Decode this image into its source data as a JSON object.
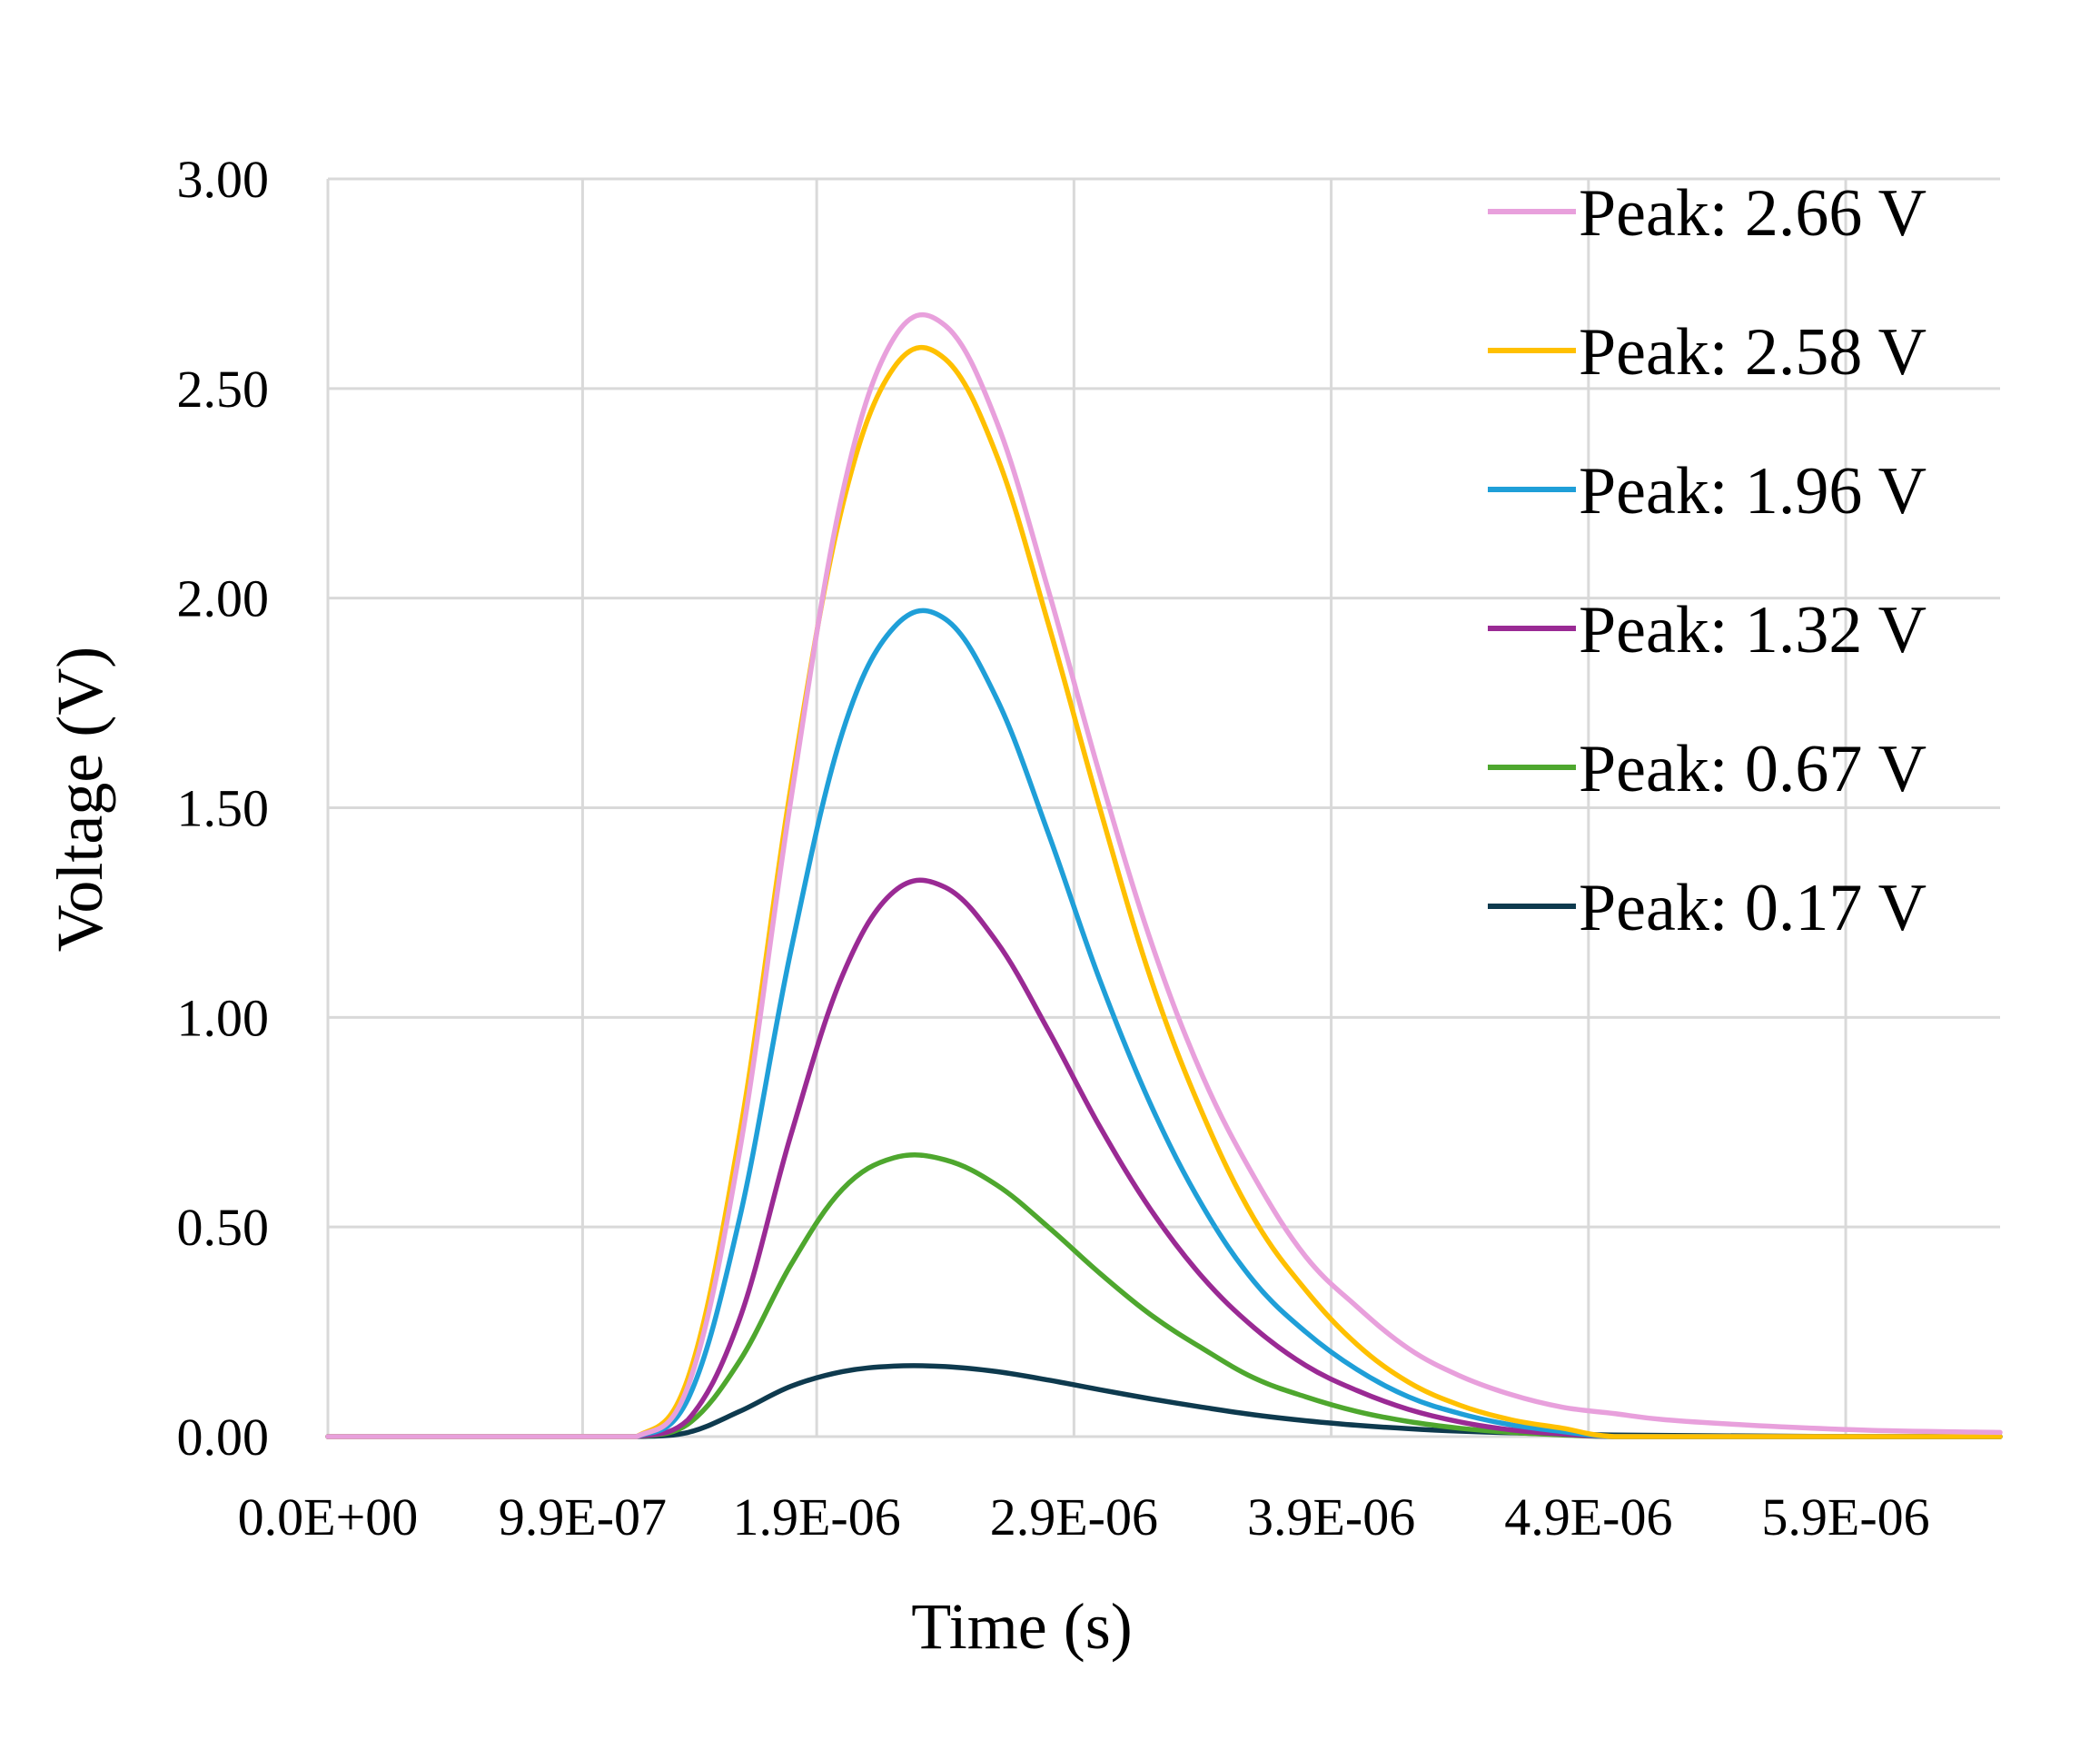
{
  "chart_data": {
    "type": "line",
    "title": "",
    "xlabel": "Time (s)",
    "ylabel": "Voltage (V)",
    "xlim": [
      0,
      6.5e-06
    ],
    "ylim": [
      0,
      3.0
    ],
    "grid": true,
    "legend_position": "top-right",
    "x_ticks": [
      0,
      9.9e-07,
      1.9e-06,
      2.9e-06,
      3.9e-06,
      4.9e-06,
      5.9e-06
    ],
    "x_tick_labels": [
      "0.0E+00",
      "9.9E-07",
      "1.9E-06",
      "2.9E-06",
      "3.9E-06",
      "4.9E-06",
      "5.9E-06"
    ],
    "y_ticks": [
      0,
      0.5,
      1.0,
      1.5,
      2.0,
      2.5,
      3.0
    ],
    "y_tick_labels": [
      "0.00",
      "0.50",
      "1.00",
      "1.50",
      "2.00",
      "2.50",
      "3.00"
    ],
    "series": [
      {
        "name": "Peak: 2.66 V",
        "color": "#e8a0dc",
        "x": [
          0,
          1e-06,
          1.2e-06,
          1.4e-06,
          1.6e-06,
          1.8e-06,
          2e-06,
          2.2e-06,
          2.4e-06,
          2.6e-06,
          2.8e-06,
          3e-06,
          3.2e-06,
          3.4e-06,
          3.6e-06,
          3.8e-06,
          4e-06,
          4.2e-06,
          4.4e-06,
          4.6e-06,
          4.8e-06,
          5e-06,
          5.2e-06,
          5.6e-06,
          6e-06,
          6.5e-06
        ],
        "y": [
          0.0,
          0.0,
          0.0,
          0.12,
          0.68,
          1.52,
          2.25,
          2.62,
          2.65,
          2.42,
          2.02,
          1.58,
          1.18,
          0.86,
          0.62,
          0.43,
          0.31,
          0.21,
          0.145,
          0.1,
          0.07,
          0.055,
          0.04,
          0.025,
          0.015,
          0.01
        ]
      },
      {
        "name": "Peak: 2.58 V",
        "color": "#ffc000",
        "x": [
          0,
          1e-06,
          1.2e-06,
          1.4e-06,
          1.6e-06,
          1.8e-06,
          2e-06,
          2.2e-06,
          2.4e-06,
          2.6e-06,
          2.8e-06,
          3e-06,
          3.2e-06,
          3.4e-06,
          3.6e-06,
          3.8e-06,
          4e-06,
          4.2e-06,
          4.4e-06,
          4.6e-06,
          4.8e-06,
          5e-06,
          5.4e-06,
          6e-06,
          6.5e-06
        ],
        "y": [
          0.0,
          0.0,
          0.0,
          0.14,
          0.72,
          1.55,
          2.22,
          2.55,
          2.57,
          2.34,
          1.94,
          1.5,
          1.09,
          0.77,
          0.52,
          0.35,
          0.22,
          0.13,
          0.075,
          0.04,
          0.02,
          0.0,
          0.0,
          0.0,
          0.0
        ]
      },
      {
        "name": "Peak: 1.96 V",
        "color": "#1f9fd8",
        "x": [
          0,
          1e-06,
          1.2e-06,
          1.4e-06,
          1.6e-06,
          1.8e-06,
          2e-06,
          2.2e-06,
          2.4e-06,
          2.6e-06,
          2.8e-06,
          3e-06,
          3.2e-06,
          3.4e-06,
          3.6e-06,
          3.8e-06,
          4e-06,
          4.2e-06,
          4.4e-06,
          4.6e-06,
          4.8e-06,
          5e-06,
          5.4e-06,
          6e-06,
          6.5e-06
        ],
        "y": [
          0.0,
          0.0,
          0.0,
          0.09,
          0.52,
          1.16,
          1.68,
          1.93,
          1.95,
          1.76,
          1.44,
          1.09,
          0.79,
          0.55,
          0.37,
          0.25,
          0.16,
          0.095,
          0.055,
          0.028,
          0.012,
          0.0,
          0.0,
          0.0,
          0.0
        ]
      },
      {
        "name": "Peak: 1.32 V",
        "color": "#9a2a94",
        "x": [
          0,
          1e-06,
          1.2e-06,
          1.4e-06,
          1.6e-06,
          1.8e-06,
          2e-06,
          2.2e-06,
          2.4e-06,
          2.6e-06,
          2.8e-06,
          3e-06,
          3.2e-06,
          3.4e-06,
          3.6e-06,
          3.8e-06,
          4e-06,
          4.2e-06,
          4.4e-06,
          4.6e-06,
          4.8e-06,
          5e-06,
          5.4e-06,
          6e-06,
          6.5e-06
        ],
        "y": [
          0.0,
          0.0,
          0.0,
          0.04,
          0.28,
          0.72,
          1.1,
          1.3,
          1.31,
          1.18,
          0.97,
          0.74,
          0.54,
          0.38,
          0.26,
          0.17,
          0.11,
          0.065,
          0.035,
          0.016,
          0.006,
          0.0,
          0.0,
          0.0,
          0.0
        ]
      },
      {
        "name": "Peak: 0.67 V",
        "color": "#4ea72e",
        "x": [
          0,
          1e-06,
          1.2e-06,
          1.4e-06,
          1.6e-06,
          1.8e-06,
          2e-06,
          2.2e-06,
          2.4e-06,
          2.6e-06,
          2.8e-06,
          3e-06,
          3.2e-06,
          3.4e-06,
          3.6e-06,
          3.8e-06,
          4e-06,
          4.2e-06,
          4.4e-06,
          4.6e-06,
          4.8e-06,
          5e-06,
          5.4e-06,
          6e-06,
          6.5e-06
        ],
        "y": [
          0.0,
          0.0,
          0.0,
          0.03,
          0.18,
          0.41,
          0.59,
          0.665,
          0.66,
          0.6,
          0.5,
          0.39,
          0.29,
          0.21,
          0.14,
          0.095,
          0.06,
          0.036,
          0.02,
          0.01,
          0.004,
          0.0,
          0.0,
          0.0,
          0.0
        ]
      },
      {
        "name": "Peak: 0.17 V",
        "color": "#0e3a4e",
        "x": [
          0,
          1e-06,
          1.2e-06,
          1.4e-06,
          1.6e-06,
          1.8e-06,
          2e-06,
          2.2e-06,
          2.4e-06,
          2.6e-06,
          2.8e-06,
          3e-06,
          3.2e-06,
          3.4e-06,
          3.6e-06,
          3.8e-06,
          4e-06,
          4.2e-06,
          4.4e-06,
          4.6e-06,
          4.8e-06,
          5e-06,
          5.4e-06,
          6e-06,
          6.5e-06
        ],
        "y": [
          0.0,
          0.0,
          0.0,
          0.01,
          0.06,
          0.12,
          0.155,
          0.168,
          0.167,
          0.155,
          0.135,
          0.112,
          0.09,
          0.07,
          0.052,
          0.038,
          0.027,
          0.019,
          0.013,
          0.009,
          0.006,
          0.004,
          0.002,
          0.0,
          0.0
        ]
      }
    ]
  }
}
